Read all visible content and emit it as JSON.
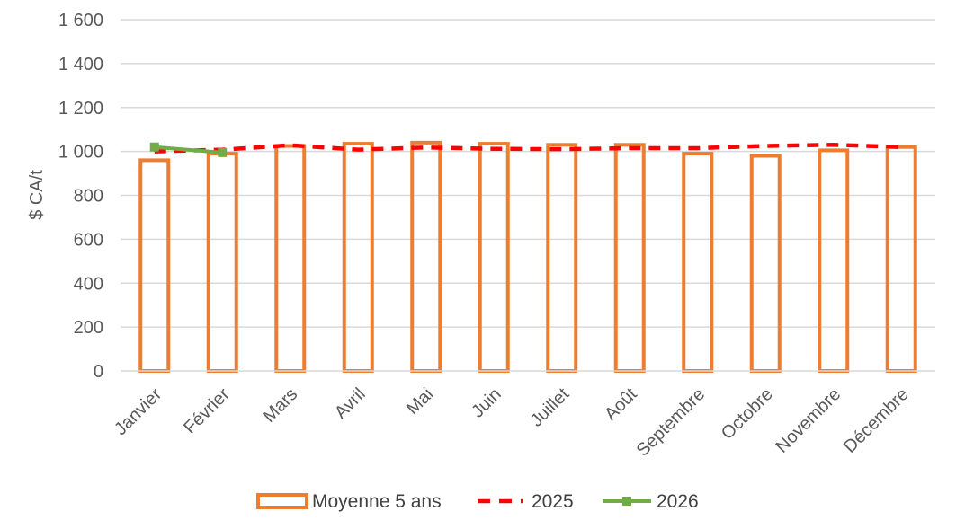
{
  "chart_data": {
    "type": "bar",
    "categories": [
      "Janvier",
      "Février",
      "Mars",
      "Avril",
      "Mai",
      "Juin",
      "Juillet",
      "Août",
      "Septembre",
      "Octobre",
      "Novembre",
      "Décembre"
    ],
    "ylabel": "$ CA/t",
    "ylim": [
      0,
      1600
    ],
    "yticks": [
      "0",
      "200",
      "400",
      "600",
      "800",
      "1 000",
      "1 200",
      "1 400",
      "1 600"
    ],
    "grid": true,
    "legend_position": "bottom",
    "series": [
      {
        "name": "Moyenne 5 ans",
        "type": "bar",
        "style": "outline",
        "color": "#ED7D31",
        "values": [
          960,
          990,
          1025,
          1035,
          1040,
          1035,
          1030,
          1030,
          990,
          980,
          1005,
          1020
        ]
      },
      {
        "name": "2025",
        "type": "line",
        "style": "dashed",
        "color": "#FF0000",
        "values": [
          1000,
          1008,
          1028,
          1008,
          1018,
          1012,
          1010,
          1015,
          1015,
          1025,
          1030,
          1020
        ]
      },
      {
        "name": "2026",
        "type": "line",
        "style": "solid-markers",
        "color": "#70AD47",
        "values": [
          1020,
          995,
          null,
          null,
          null,
          null,
          null,
          null,
          null,
          null,
          null,
          null
        ]
      }
    ]
  }
}
